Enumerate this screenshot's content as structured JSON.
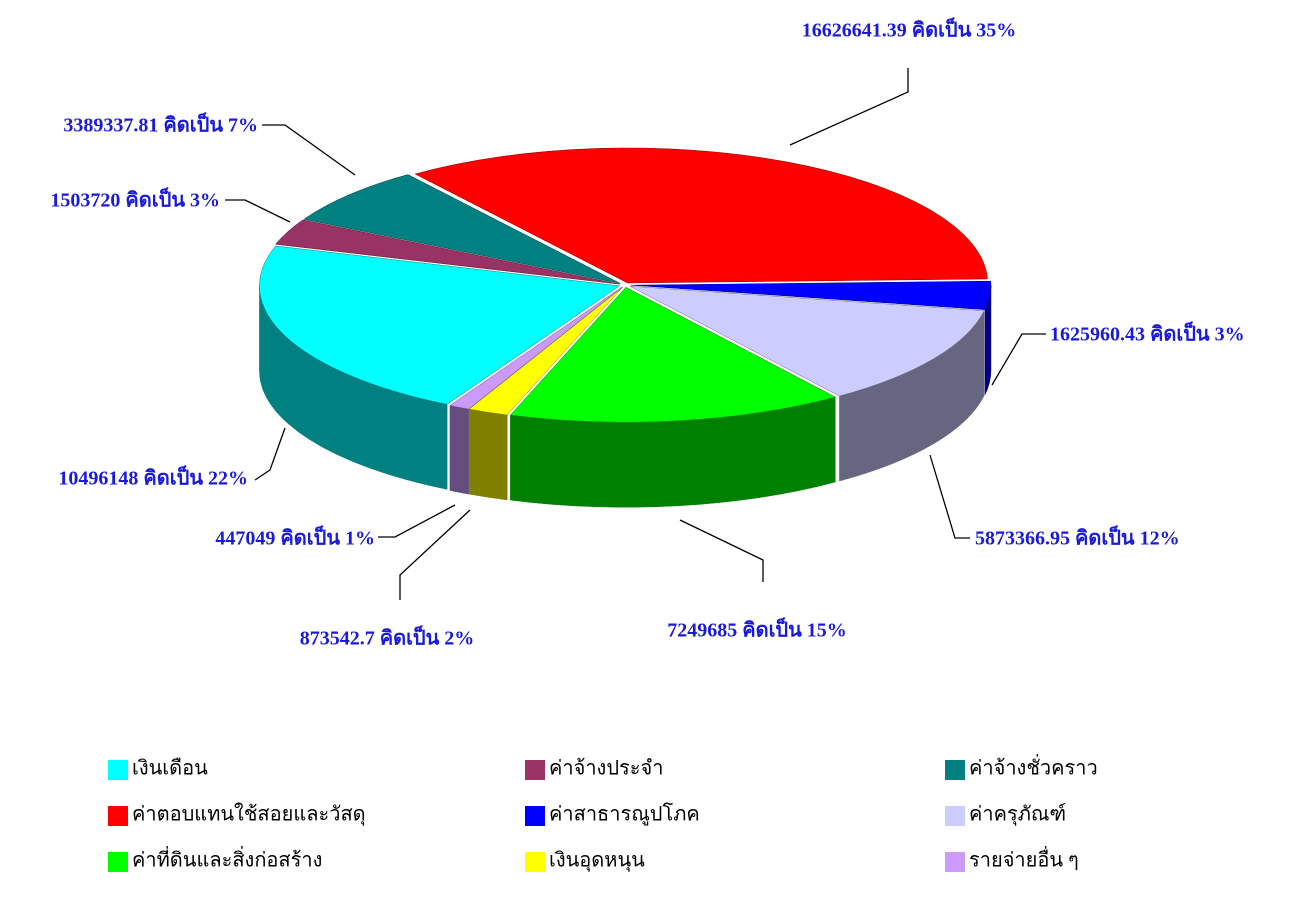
{
  "chart_data": {
    "type": "pie3d",
    "categories": [
      "เงินเดือน",
      "ค่าจ้างประจำ",
      "ค่าจ้างชั่วคราว",
      "ค่าตอบแทนใช้สอยและวัสดุ",
      "ค่าสาธารณูปโภค",
      "ค่าครุภัณฑ์",
      "ค่าที่ดินและสิ่งก่อสร้าง",
      "เงินอุดหนุน",
      "รายจ่ายอื่น ๆ"
    ],
    "values": [
      10496148,
      1503720,
      3389337.81,
      16626641.39,
      1625960.43,
      5873366.95,
      7249685,
      873542.7,
      447049
    ],
    "value_labels": [
      "10496148 คิดเป็น  22%",
      "1503720 คิดเป็น  3%",
      "3389337.81 คิดเป็น  7%",
      "16626641.39 คิดเป็น  35%",
      "1625960.43 คิดเป็น  3%",
      "5873366.95 คิดเป็น 12%",
      "7249685 คิดเป็น  15%",
      "873542.7 คิดเป็น 2%",
      "447049 คิดเป็น  1%"
    ],
    "colors": [
      "#00ffff",
      "#993366",
      "#008080",
      "#ff0000",
      "#0000ff",
      "#ccccff",
      "#00ff00",
      "#ffff00",
      "#cc99ff"
    ],
    "legend": "bottom"
  }
}
